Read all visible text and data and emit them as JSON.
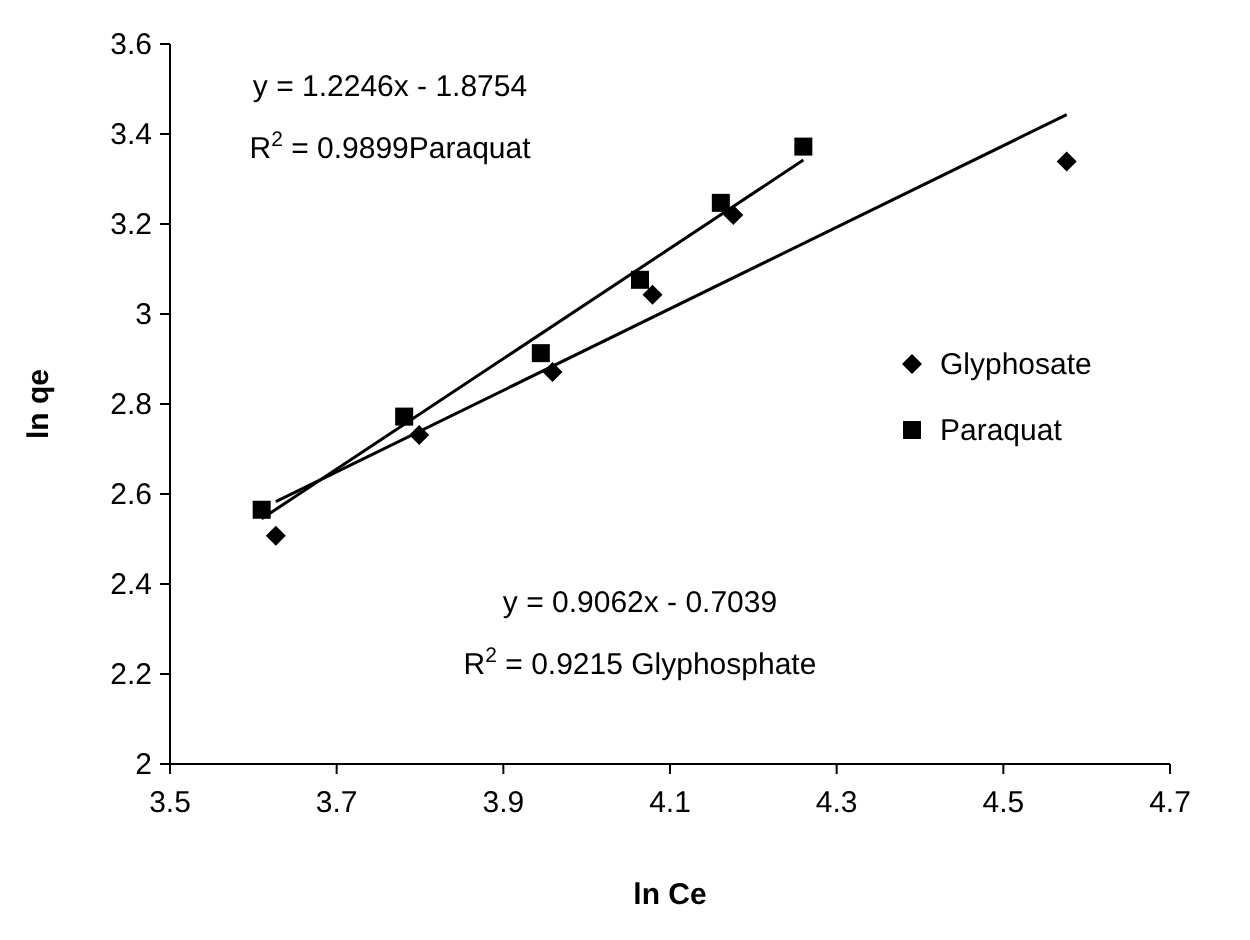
{
  "chart_data": {
    "type": "scatter",
    "xlabel": "ln Ce",
    "ylabel": "ln qe",
    "xlim": [
      3.5,
      4.7
    ],
    "ylim": [
      2,
      3.6
    ],
    "xticks": [
      3.5,
      3.7,
      3.9,
      4.1,
      4.3,
      4.5,
      4.7
    ],
    "yticks": [
      2,
      2.2,
      2.4,
      2.6,
      2.8,
      3,
      3.2,
      3.4,
      3.6
    ],
    "grid": false,
    "legend": "right",
    "series": [
      {
        "name": "Glyphosate",
        "color": "#000000",
        "marker": "diamond",
        "x": [
          3.627,
          3.799,
          3.959,
          4.079,
          4.176,
          4.576
        ],
        "values": [
          2.507,
          2.731,
          2.871,
          3.043,
          3.22,
          3.339
        ]
      },
      {
        "name": "Paraquat",
        "color": "#000000",
        "marker": "square",
        "x": [
          3.61,
          3.781,
          3.945,
          4.064,
          4.161,
          4.26
        ],
        "values": [
          2.565,
          2.772,
          2.913,
          3.076,
          3.247,
          3.372
        ]
      },
      {
        "type": "line",
        "color": "#000000",
        "marker": "none",
        "x": [
          3.61,
          4.26
        ],
        "values": [
          2.545,
          3.342
        ]
      },
      {
        "type": "line",
        "color": "#000000",
        "marker": "none",
        "x": [
          3.627,
          4.576
        ],
        "values": [
          2.583,
          3.443
        ]
      }
    ],
    "annotations": [
      "y = 1.2246x - 1.8754\nR$^{2}$ = 0.9899Paraquat",
      "y = 0.9062x - 0.7039\nR$^{2}$ = 0.9215 Glyphosphate"
    ]
  }
}
